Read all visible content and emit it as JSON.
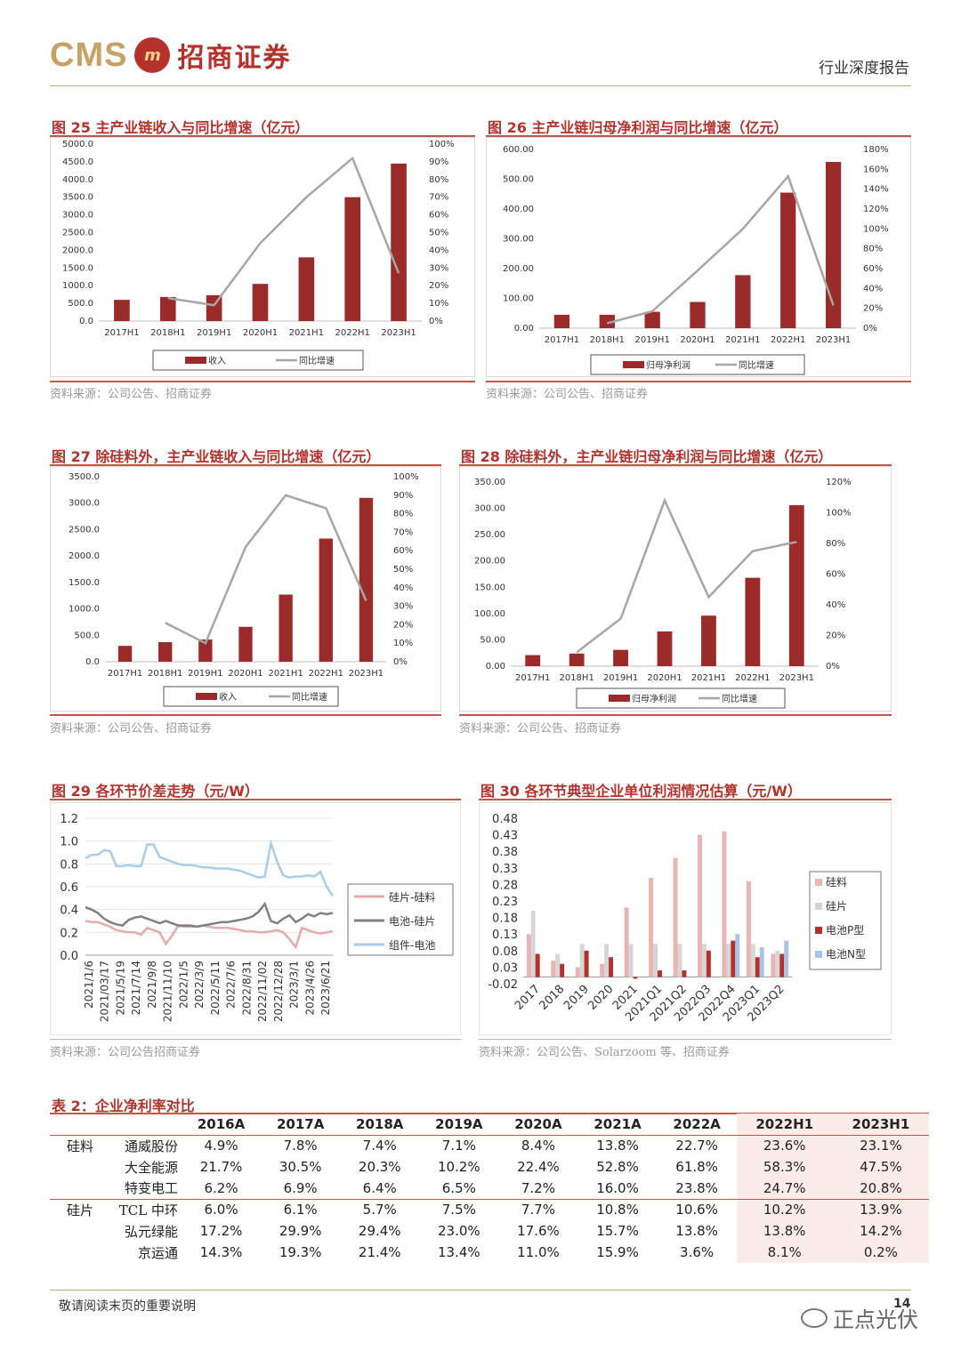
{
  "header": {
    "logo_latin": "CMS",
    "logo_mark": "m",
    "logo_cn": "招商证券",
    "report_type": "行业深度报告"
  },
  "fig25": {
    "title": "图 25  主产业链收入与同比增速（亿元）",
    "source": "资料来源：公司公告、招商证券",
    "chart_data": {
      "type": "bar+line",
      "categories": [
        "2017H1",
        "2018H1",
        "2019H1",
        "2020H1",
        "2021H1",
        "2022H1",
        "2023H1"
      ],
      "series": [
        {
          "name": "收入",
          "type": "bar",
          "axis": "left",
          "values": [
            600,
            680,
            730,
            1050,
            1800,
            3500,
            4450
          ]
        },
        {
          "name": "同比增速",
          "type": "line",
          "axis": "right",
          "values": [
            null,
            13,
            9,
            44,
            70,
            92,
            27
          ]
        }
      ],
      "left_ticks": [
        "5000.0",
        "4500.0",
        "4000.0",
        "3500.0",
        "3000.0",
        "2500.0",
        "2000.0",
        "1500.0",
        "1000.0",
        "500.0",
        "0.0"
      ],
      "right_ticks": [
        "100%",
        "90%",
        "80%",
        "70%",
        "60%",
        "50%",
        "40%",
        "30%",
        "20%",
        "10%",
        "0%"
      ],
      "ylim": [
        0,
        5000
      ],
      "y2lim": [
        0,
        100
      ],
      "legend": "bottom"
    }
  },
  "fig26": {
    "title": "图 26  主产业链归母净利润与同比增速（亿元）",
    "source": "资料来源：公司公告、招商证券",
    "chart_data": {
      "type": "bar+line",
      "categories": [
        "2017H1",
        "2018H1",
        "2019H1",
        "2020H1",
        "2021H1",
        "2022H1",
        "2023H1"
      ],
      "series": [
        {
          "name": "归母净利润",
          "type": "bar",
          "axis": "left",
          "values": [
            45,
            45,
            55,
            88,
            178,
            455,
            558
          ]
        },
        {
          "name": "同比增速",
          "type": "line",
          "axis": "right",
          "values": [
            null,
            5,
            17,
            58,
            100,
            153,
            23
          ]
        }
      ],
      "left_ticks": [
        "600.00",
        "500.00",
        "400.00",
        "300.00",
        "200.00",
        "100.00",
        "0.00"
      ],
      "right_ticks": [
        "180%",
        "160%",
        "140%",
        "120%",
        "100%",
        "80%",
        "60%",
        "40%",
        "20%",
        "0%"
      ],
      "ylim": [
        0,
        600
      ],
      "y2lim": [
        0,
        180
      ],
      "legend": "bottom"
    }
  },
  "fig27": {
    "title": "图 27  除硅料外，主产业链收入与同比增速（亿元）",
    "source": "资料来源：公司公告、招商证券",
    "chart_data": {
      "type": "bar+line",
      "categories": [
        "2017H1",
        "2018H1",
        "2019H1",
        "2020H1",
        "2021H1",
        "2022H1",
        "2023H1"
      ],
      "series": [
        {
          "name": "收入",
          "type": "bar",
          "axis": "left",
          "values": [
            300,
            370,
            420,
            660,
            1270,
            2330,
            3100
          ]
        },
        {
          "name": "同比增速",
          "type": "line",
          "axis": "right",
          "values": [
            null,
            21,
            10,
            62,
            90,
            83,
            33
          ]
        }
      ],
      "left_ticks": [
        "3500.0",
        "3000.0",
        "2500.0",
        "2000.0",
        "1500.0",
        "1000.0",
        "500.0",
        "0.0"
      ],
      "right_ticks": [
        "100%",
        "90%",
        "80%",
        "70%",
        "60%",
        "50%",
        "40%",
        "30%",
        "20%",
        "10%",
        "0%"
      ],
      "ylim": [
        0,
        3500
      ],
      "y2lim": [
        0,
        100
      ],
      "legend": "bottom"
    }
  },
  "fig28": {
    "title": "图 28  除硅料外，主产业链归母净利润与同比增速（亿元）",
    "source": "资料来源：公司公告、招商证券",
    "chart_data": {
      "type": "bar+line",
      "categories": [
        "2017H1",
        "2018H1",
        "2019H1",
        "2020H1",
        "2021H1",
        "2022H1",
        "2023H1"
      ],
      "series": [
        {
          "name": "归母净利润",
          "type": "bar",
          "axis": "left",
          "values": [
            21,
            24,
            31,
            66,
            96,
            168,
            306
          ]
        },
        {
          "name": "同比增速",
          "type": "line",
          "axis": "right",
          "values": [
            null,
            9,
            31,
            108,
            45,
            75,
            81
          ]
        }
      ],
      "left_ticks": [
        "350.00",
        "300.00",
        "250.00",
        "200.00",
        "150.00",
        "100.00",
        "50.00",
        "0.00"
      ],
      "right_ticks": [
        "120%",
        "100%",
        "80%",
        "60%",
        "40%",
        "20%",
        "0%"
      ],
      "ylim": [
        0,
        350
      ],
      "y2lim": [
        0,
        120
      ],
      "legend": "bottom"
    }
  },
  "fig29": {
    "title": "图 29  各环节价差走势（元/W）",
    "source": "资料来源：公司公告招商证券",
    "chart_data": {
      "type": "line",
      "x_ticks": [
        "2021/1/6",
        "2021/03/17",
        "2021/5/19",
        "2021/7/14",
        "2021/9/8",
        "2021/11/10",
        "2022/1/5",
        "2022/3/9",
        "2022/5/11",
        "2022/7/6",
        "2022/8/31",
        "2022/11/02",
        "2022/12/28",
        "2023/3/1",
        "2023/4/26",
        "2023/6/21"
      ],
      "y_ticks": [
        "1.2",
        "1.0",
        "0.8",
        "0.6",
        "0.4",
        "0.2",
        "0.0"
      ],
      "ylim": [
        0,
        1.2
      ],
      "series": [
        {
          "name": "硅片-硅料",
          "color": "#e8a9a9",
          "values": [
            0.3,
            0.29,
            0.29,
            0.27,
            0.25,
            0.22,
            0.21,
            0.2,
            0.2,
            0.18,
            0.24,
            0.22,
            0.2,
            0.1,
            0.17,
            0.26,
            0.25,
            0.25,
            0.25,
            0.26,
            0.25,
            0.24,
            0.24,
            0.24,
            0.23,
            0.22,
            0.21,
            0.21,
            0.2,
            0.2,
            0.21,
            0.22,
            0.2,
            0.14,
            0.07,
            0.24,
            0.22,
            0.2,
            0.19,
            0.2,
            0.21
          ]
        },
        {
          "name": "电池-硅片",
          "color": "#808080",
          "values": [
            0.42,
            0.4,
            0.37,
            0.32,
            0.29,
            0.27,
            0.26,
            0.31,
            0.33,
            0.34,
            0.32,
            0.3,
            0.28,
            0.3,
            0.28,
            0.26,
            0.26,
            0.26,
            0.25,
            0.26,
            0.27,
            0.28,
            0.29,
            0.29,
            0.3,
            0.31,
            0.32,
            0.34,
            0.38,
            0.45,
            0.3,
            0.28,
            0.32,
            0.35,
            0.29,
            0.32,
            0.36,
            0.34,
            0.37,
            0.36,
            0.37
          ]
        },
        {
          "name": "组件-电池",
          "color": "#a9cde8",
          "values": [
            0.85,
            0.88,
            0.88,
            0.92,
            0.91,
            0.78,
            0.78,
            0.79,
            0.78,
            0.78,
            0.97,
            0.97,
            0.86,
            0.84,
            0.82,
            0.8,
            0.79,
            0.79,
            0.78,
            0.77,
            0.77,
            0.76,
            0.76,
            0.76,
            0.75,
            0.74,
            0.72,
            0.7,
            0.68,
            0.69,
            0.98,
            0.82,
            0.7,
            0.68,
            0.69,
            0.69,
            0.7,
            0.69,
            0.73,
            0.6,
            0.52
          ]
        }
      ],
      "legend": "right"
    }
  },
  "fig30": {
    "title": "图 30 各环节典型企业单位利润情况估算（元/W）",
    "source": "资料来源：公司公告、Solarzoom 等、招商证券",
    "chart_data": {
      "type": "bar",
      "categories": [
        "2017",
        "2018",
        "2019",
        "2020",
        "2021",
        "2021Q1",
        "2021Q2",
        "2022Q3",
        "2022Q4",
        "2023Q1",
        "2023Q2"
      ],
      "y_ticks": [
        "0.48",
        "0.43",
        "0.38",
        "0.33",
        "0.28",
        "0.23",
        "0.18",
        "0.13",
        "0.08",
        "0.03",
        "-0.02"
      ],
      "ylim": [
        -0.02,
        0.48
      ],
      "series": [
        {
          "name": "硅料",
          "color": "#e8b4b4",
          "values": [
            0.13,
            0.05,
            0.03,
            0.04,
            0.21,
            0.3,
            0.36,
            0.43,
            0.44,
            0.29,
            0.07
          ]
        },
        {
          "name": "硅片",
          "color": "#d6d6d6",
          "values": [
            0.2,
            0.07,
            0.1,
            0.1,
            0.1,
            0.1,
            0.1,
            0.1,
            0.1,
            0.1,
            0.08
          ]
        },
        {
          "name": "电池P型",
          "color": "#b5312b",
          "values": [
            0.07,
            0.04,
            0.08,
            0.06,
            -0.005,
            0.02,
            0.02,
            0.08,
            0.11,
            0.06,
            0.07
          ]
        },
        {
          "name": "电池N型",
          "color": "#a9c4e8",
          "values": [
            null,
            null,
            null,
            null,
            null,
            null,
            null,
            null,
            0.13,
            0.09,
            0.11
          ]
        }
      ],
      "legend": "right"
    }
  },
  "table2": {
    "title": "表 2：企业净利率对比",
    "headers": [
      "2016A",
      "2017A",
      "2018A",
      "2019A",
      "2020A",
      "2021A",
      "2022A",
      "2022H1",
      "2023H1"
    ],
    "rows": [
      {
        "cat": "硅料",
        "company": "通威股份",
        "values": [
          "4.9%",
          "7.8%",
          "7.4%",
          "7.1%",
          "8.4%",
          "13.8%",
          "22.7%",
          "23.6%",
          "23.1%"
        ]
      },
      {
        "cat": "",
        "company": "大全能源",
        "values": [
          "21.7%",
          "30.5%",
          "20.3%",
          "10.2%",
          "22.4%",
          "52.8%",
          "61.8%",
          "58.3%",
          "47.5%"
        ]
      },
      {
        "cat": "",
        "company": "特变电工",
        "values": [
          "6.2%",
          "6.9%",
          "6.4%",
          "6.5%",
          "7.2%",
          "16.0%",
          "23.8%",
          "24.7%",
          "20.8%"
        ]
      },
      {
        "cat": "硅片",
        "company": "TCL 中环",
        "values": [
          "6.0%",
          "6.1%",
          "5.7%",
          "7.5%",
          "7.7%",
          "10.8%",
          "10.6%",
          "10.2%",
          "13.9%"
        ]
      },
      {
        "cat": "",
        "company": "弘元绿能",
        "values": [
          "17.2%",
          "29.9%",
          "29.4%",
          "23.0%",
          "17.6%",
          "15.7%",
          "13.8%",
          "13.8%",
          "14.2%"
        ]
      },
      {
        "cat": "",
        "company": "京运通",
        "values": [
          "14.3%",
          "19.3%",
          "21.4%",
          "13.4%",
          "11.0%",
          "15.9%",
          "3.6%",
          "8.1%",
          "0.2%"
        ]
      }
    ]
  },
  "footer": {
    "notice": "敬请阅读末页的重要说明",
    "page": "14",
    "watermark": "正点光伏"
  }
}
